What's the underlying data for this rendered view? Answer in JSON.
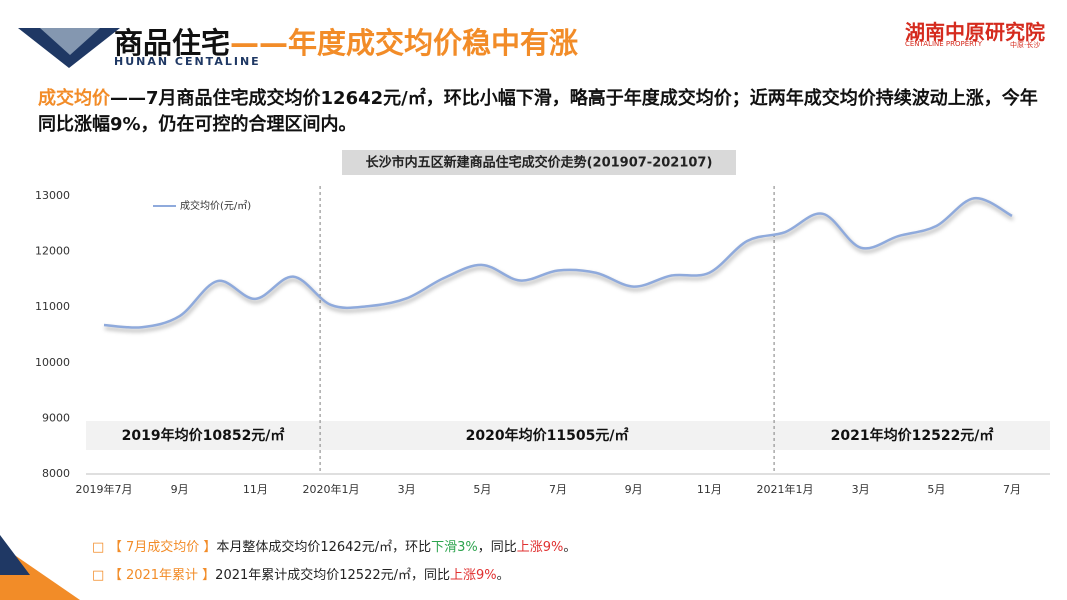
{
  "header": {
    "title_main": "商品住宅",
    "title_accent": "——年度成交均价稳中有涨",
    "subtitle": "HUNAN CENTALINE",
    "logo": "湖南中原研究院",
    "logo_en": "CENTALINE PROPERTY",
    "logo_city": "中原·长沙"
  },
  "intro": {
    "lead": "成交均价",
    "text": "——7月商品住宅成交均价12642元/㎡，环比小幅下滑，略高于年度成交均价；近两年成交均价持续波动上涨，今年同比涨幅9%，仍在可控的合理区间内。"
  },
  "chart_data": {
    "type": "line",
    "title": "长沙市内五区新建商品住宅成交价走势(201907-202107)",
    "categories": [
      "2019年7月",
      null,
      "9月",
      null,
      "11月",
      null,
      "2020年1月",
      null,
      "3月",
      null,
      "5月",
      null,
      "7月",
      null,
      "9月",
      null,
      "11月",
      null,
      "2021年1月",
      null,
      "3月",
      null,
      "5月",
      null,
      "7月"
    ],
    "series": [
      {
        "name": "成交均价(元/㎡)",
        "color": "#8faadc",
        "values": [
          10680,
          10640,
          10840,
          11470,
          11150,
          11550,
          11040,
          11020,
          11160,
          11530,
          11760,
          11480,
          11660,
          11620,
          11370,
          11570,
          11620,
          12190,
          12350,
          12680,
          12070,
          12280,
          12460,
          12960,
          12642
        ]
      }
    ],
    "ylim": [
      8000,
      13000
    ],
    "yticks": [
      8000,
      9000,
      10000,
      11000,
      12000,
      13000
    ],
    "annotations": [
      "2019年均价10852元/㎡",
      "2020年均价11505元/㎡",
      "2021年均价12522元/㎡"
    ],
    "legend": "upper left"
  },
  "bullets": [
    {
      "label": "【 7月成交均价 】",
      "text": "本月整体成交均价12642元/㎡，环比",
      "down": "下滑3%",
      "mid": "，同比",
      "up": "上涨9%",
      "end": "。"
    },
    {
      "label": "【 2021年累计 】",
      "text": "2021年累计成交均价12522元/㎡，同比",
      "up": "上涨9%",
      "end": "。"
    }
  ]
}
